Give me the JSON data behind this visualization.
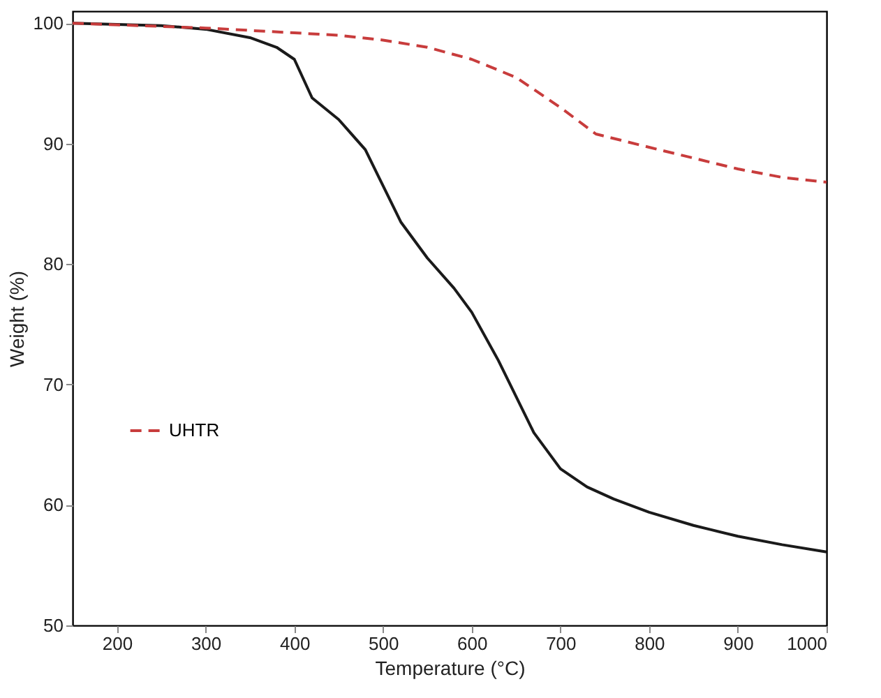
{
  "chart_data": {
    "type": "line",
    "xlabel": "Temperature (°C)",
    "ylabel": "Weight (%)",
    "xlim": [
      150,
      1000
    ],
    "xticks": [
      200,
      300,
      400,
      500,
      600,
      700,
      800,
      900,
      1000
    ],
    "ylim": [
      50,
      101
    ],
    "yticks": [
      50,
      60,
      70,
      80,
      90,
      100
    ],
    "grid": false,
    "legend": "left",
    "series": [
      {
        "color": "#1a1a1a",
        "line_style": "solid",
        "x": [
          150,
          200,
          250,
          300,
          350,
          380,
          400,
          420,
          450,
          480,
          500,
          520,
          550,
          580,
          600,
          630,
          650,
          670,
          700,
          730,
          760,
          800,
          850,
          900,
          950,
          1000
        ],
        "values": [
          100,
          99.9,
          99.8,
          99.5,
          98.8,
          98,
          97,
          93.8,
          92,
          89.5,
          86.5,
          83.5,
          80.5,
          78,
          76,
          72,
          69,
          66,
          63,
          61.5,
          60.5,
          59.4,
          58.3,
          57.4,
          56.7,
          56.1
        ]
      },
      {
        "name": "UHTR",
        "color": "#c83c3c",
        "line_style": "dashed",
        "x": [
          150,
          300,
          400,
          450,
          500,
          550,
          600,
          650,
          700,
          740,
          800,
          850,
          900,
          950,
          1000
        ],
        "values": [
          100,
          99.6,
          99.2,
          99,
          98.6,
          98,
          97,
          95.5,
          93,
          90.8,
          89.7,
          88.8,
          87.9,
          87.2,
          86.8
        ]
      }
    ]
  }
}
